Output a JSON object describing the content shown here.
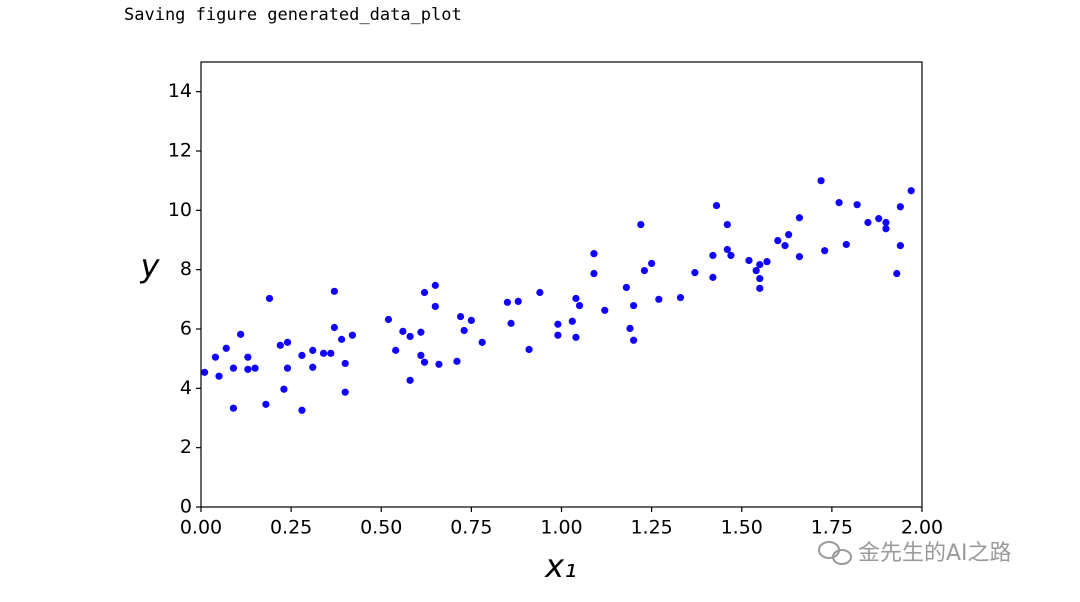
{
  "output_text": "Saving figure generated_data_plot",
  "watermark": "金先生的AI之路",
  "chart_data": {
    "type": "scatter",
    "color": "#0f00ff",
    "xlabel": "x₁",
    "ylabel": "y",
    "xlim": [
      0,
      2
    ],
    "ylim": [
      0,
      15
    ],
    "xticks": [
      {
        "value": 0,
        "label": "0.00"
      },
      {
        "value": 0.25,
        "label": "0.25"
      },
      {
        "value": 0.5,
        "label": "0.50"
      },
      {
        "value": 0.75,
        "label": "0.75"
      },
      {
        "value": 1,
        "label": "1.00"
      },
      {
        "value": 1.25,
        "label": "1.25"
      },
      {
        "value": 1.5,
        "label": "1.50"
      },
      {
        "value": 1.75,
        "label": "1.75"
      },
      {
        "value": 2,
        "label": "2.00"
      }
    ],
    "yticks": [
      0,
      2,
      4,
      6,
      8,
      10,
      12,
      14
    ],
    "x": [
      0.01,
      0.04,
      0.05,
      0.07,
      0.09,
      0.09,
      0.11,
      0.13,
      0.13,
      0.15,
      0.18,
      0.19,
      0.22,
      0.23,
      0.24,
      0.24,
      0.28,
      0.28,
      0.31,
      0.31,
      0.34,
      0.36,
      0.37,
      0.37,
      0.39,
      0.4,
      0.4,
      0.42,
      0.52,
      0.54,
      0.56,
      0.58,
      0.58,
      0.61,
      0.61,
      0.62,
      0.62,
      0.65,
      0.65,
      0.66,
      0.71,
      0.72,
      0.73,
      0.75,
      0.78,
      0.85,
      0.86,
      0.88,
      0.91,
      0.94,
      0.99,
      0.99,
      1.03,
      1.04,
      1.04,
      1.05,
      1.09,
      1.09,
      1.12,
      1.18,
      1.19,
      1.2,
      1.2,
      1.22,
      1.23,
      1.25,
      1.27,
      1.33,
      1.37,
      1.42,
      1.42,
      1.43,
      1.46,
      1.46,
      1.47,
      1.52,
      1.54,
      1.55,
      1.55,
      1.55,
      1.57,
      1.6,
      1.62,
      1.63,
      1.66,
      1.66,
      1.72,
      1.73,
      1.77,
      1.79,
      1.82,
      1.85,
      1.88,
      1.9,
      1.9,
      1.93,
      1.94,
      1.94,
      1.97
    ],
    "y": [
      4.54,
      5.05,
      4.41,
      5.35,
      3.33,
      4.68,
      5.82,
      5.05,
      4.64,
      4.68,
      3.46,
      7.03,
      5.45,
      3.97,
      5.55,
      4.68,
      5.11,
      3.26,
      5.28,
      4.71,
      5.18,
      5.18,
      6.05,
      7.27,
      5.65,
      3.87,
      4.84,
      5.79,
      6.32,
      5.28,
      5.92,
      4.27,
      5.75,
      5.11,
      5.89,
      7.23,
      4.88,
      6.76,
      7.47,
      4.81,
      4.91,
      6.42,
      5.95,
      6.29,
      5.55,
      6.9,
      6.19,
      6.93,
      5.31,
      7.23,
      6.16,
      5.79,
      6.26,
      5.72,
      7.03,
      6.79,
      8.54,
      7.87,
      6.63,
      7.4,
      6.02,
      5.62,
      6.79,
      9.52,
      7.97,
      8.21,
      7.0,
      7.06,
      7.9,
      8.48,
      7.74,
      10.16,
      8.68,
      9.52,
      8.48,
      8.31,
      7.97,
      7.7,
      7.37,
      8.17,
      8.27,
      8.98,
      8.81,
      9.18,
      9.75,
      8.44,
      11.0,
      8.64,
      10.26,
      8.85,
      10.19,
      9.59,
      9.72,
      9.59,
      9.38,
      7.87,
      10.12,
      8.81,
      10.66
    ]
  }
}
